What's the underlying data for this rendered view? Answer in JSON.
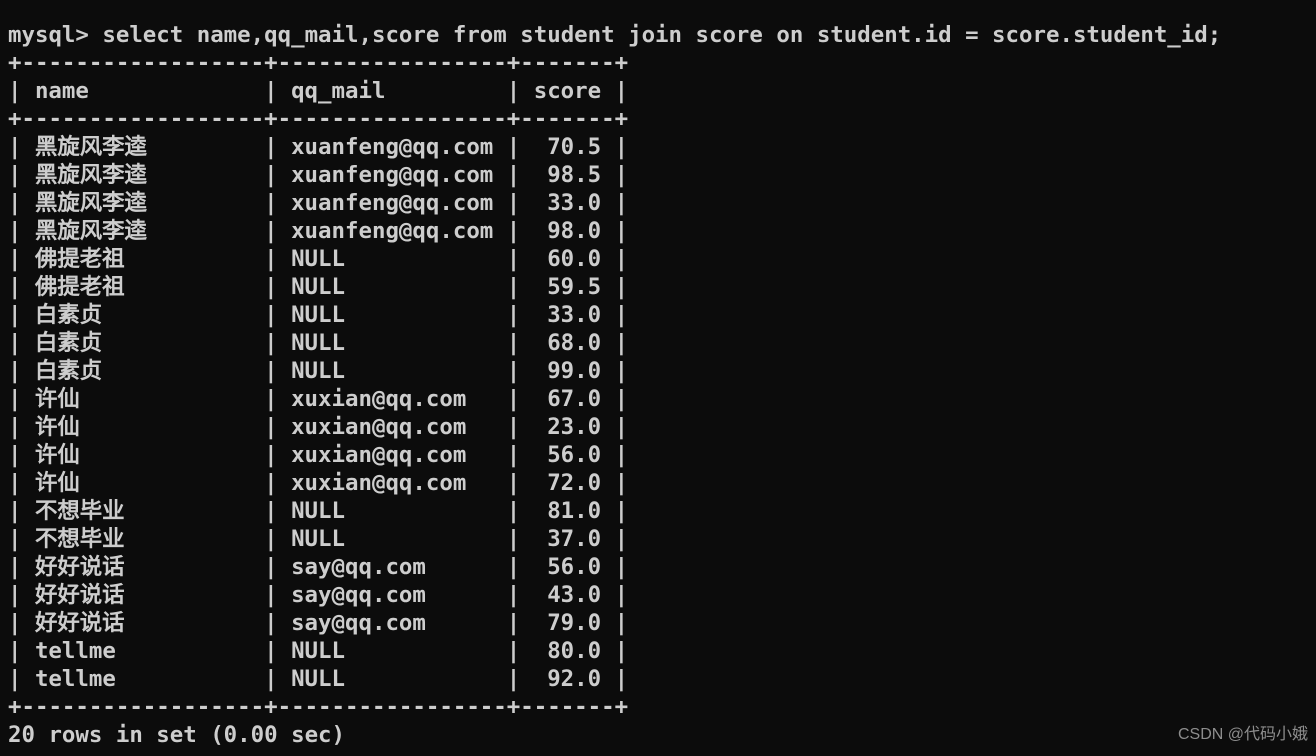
{
  "colors": {
    "background": "#0c0c0c",
    "text": "#cdcdcd",
    "watermark": "#8d8d8d"
  },
  "terminal": {
    "prompt": "mysql>",
    "query": "select name,qq_mail,score from student join score on student.id = score.student_id;"
  },
  "result_table": {
    "columns": [
      "name",
      "qq_mail",
      "score"
    ],
    "rows": [
      [
        "黑旋风李逵",
        "xuanfeng@qq.com",
        "70.5"
      ],
      [
        "黑旋风李逵",
        "xuanfeng@qq.com",
        "98.5"
      ],
      [
        "黑旋风李逵",
        "xuanfeng@qq.com",
        "33.0"
      ],
      [
        "黑旋风李逵",
        "xuanfeng@qq.com",
        "98.0"
      ],
      [
        "佛提老祖",
        "NULL",
        "60.0"
      ],
      [
        "佛提老祖",
        "NULL",
        "59.5"
      ],
      [
        "白素贞",
        "NULL",
        "33.0"
      ],
      [
        "白素贞",
        "NULL",
        "68.0"
      ],
      [
        "白素贞",
        "NULL",
        "99.0"
      ],
      [
        "许仙",
        "xuxian@qq.com",
        "67.0"
      ],
      [
        "许仙",
        "xuxian@qq.com",
        "23.0"
      ],
      [
        "许仙",
        "xuxian@qq.com",
        "56.0"
      ],
      [
        "许仙",
        "xuxian@qq.com",
        "72.0"
      ],
      [
        "不想毕业",
        "NULL",
        "81.0"
      ],
      [
        "不想毕业",
        "NULL",
        "37.0"
      ],
      [
        "好好说话",
        "say@qq.com",
        "56.0"
      ],
      [
        "好好说话",
        "say@qq.com",
        "43.0"
      ],
      [
        "好好说话",
        "say@qq.com",
        "79.0"
      ],
      [
        "tellme",
        "NULL",
        "80.0"
      ],
      [
        "tellme",
        "NULL",
        "92.0"
      ]
    ]
  },
  "status_line": "20 rows in set (0.00 sec)",
  "watermark": "CSDN @代码小娥"
}
